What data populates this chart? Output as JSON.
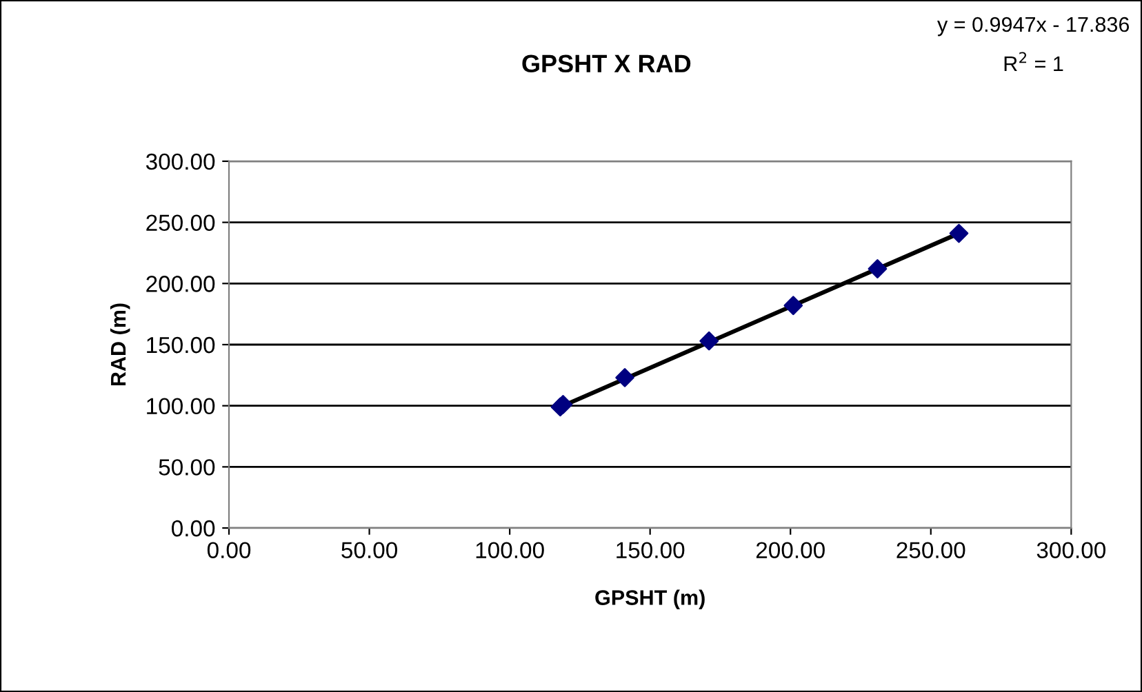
{
  "chart_data": {
    "type": "scatter",
    "title": "GPSHT X RAD",
    "xlabel": "GPSHT (m)",
    "ylabel": "RAD (m)",
    "annotations": [
      "y = 0.9947x - 17.836",
      "R$^{2}$ = 1"
    ],
    "series": [
      {
        "color": "#000080",
        "marker": "diamond",
        "x": [
          118,
          119,
          141,
          171,
          201,
          231,
          260
        ],
        "values": [
          99,
          101,
          123,
          153,
          182,
          212,
          241
        ]
      },
      {
        "type": "line",
        "color": "#000000",
        "marker": "none",
        "line_style": "solid",
        "x": [
          118,
          260
        ],
        "values": [
          99,
          241
        ]
      }
    ],
    "xlim": [
      0,
      300
    ],
    "xticks": [
      {
        "value": 0,
        "label": "0.00"
      },
      {
        "value": 50,
        "label": "50.00"
      },
      {
        "value": 100,
        "label": "100.00"
      },
      {
        "value": 150,
        "label": "150.00"
      },
      {
        "value": 200,
        "label": "200.00"
      },
      {
        "value": 250,
        "label": "250.00"
      },
      {
        "value": 300,
        "label": "300.00"
      }
    ],
    "ylim": [
      0,
      300
    ],
    "yticks": [
      {
        "value": 0,
        "label": "0.00"
      },
      {
        "value": 50,
        "label": "50.00"
      },
      {
        "value": 100,
        "label": "100.00"
      },
      {
        "value": 150,
        "label": "150.00"
      },
      {
        "value": 200,
        "label": "200.00"
      },
      {
        "value": 250,
        "label": "250.00"
      },
      {
        "value": 300,
        "label": "300.00"
      }
    ],
    "grid": "y"
  }
}
